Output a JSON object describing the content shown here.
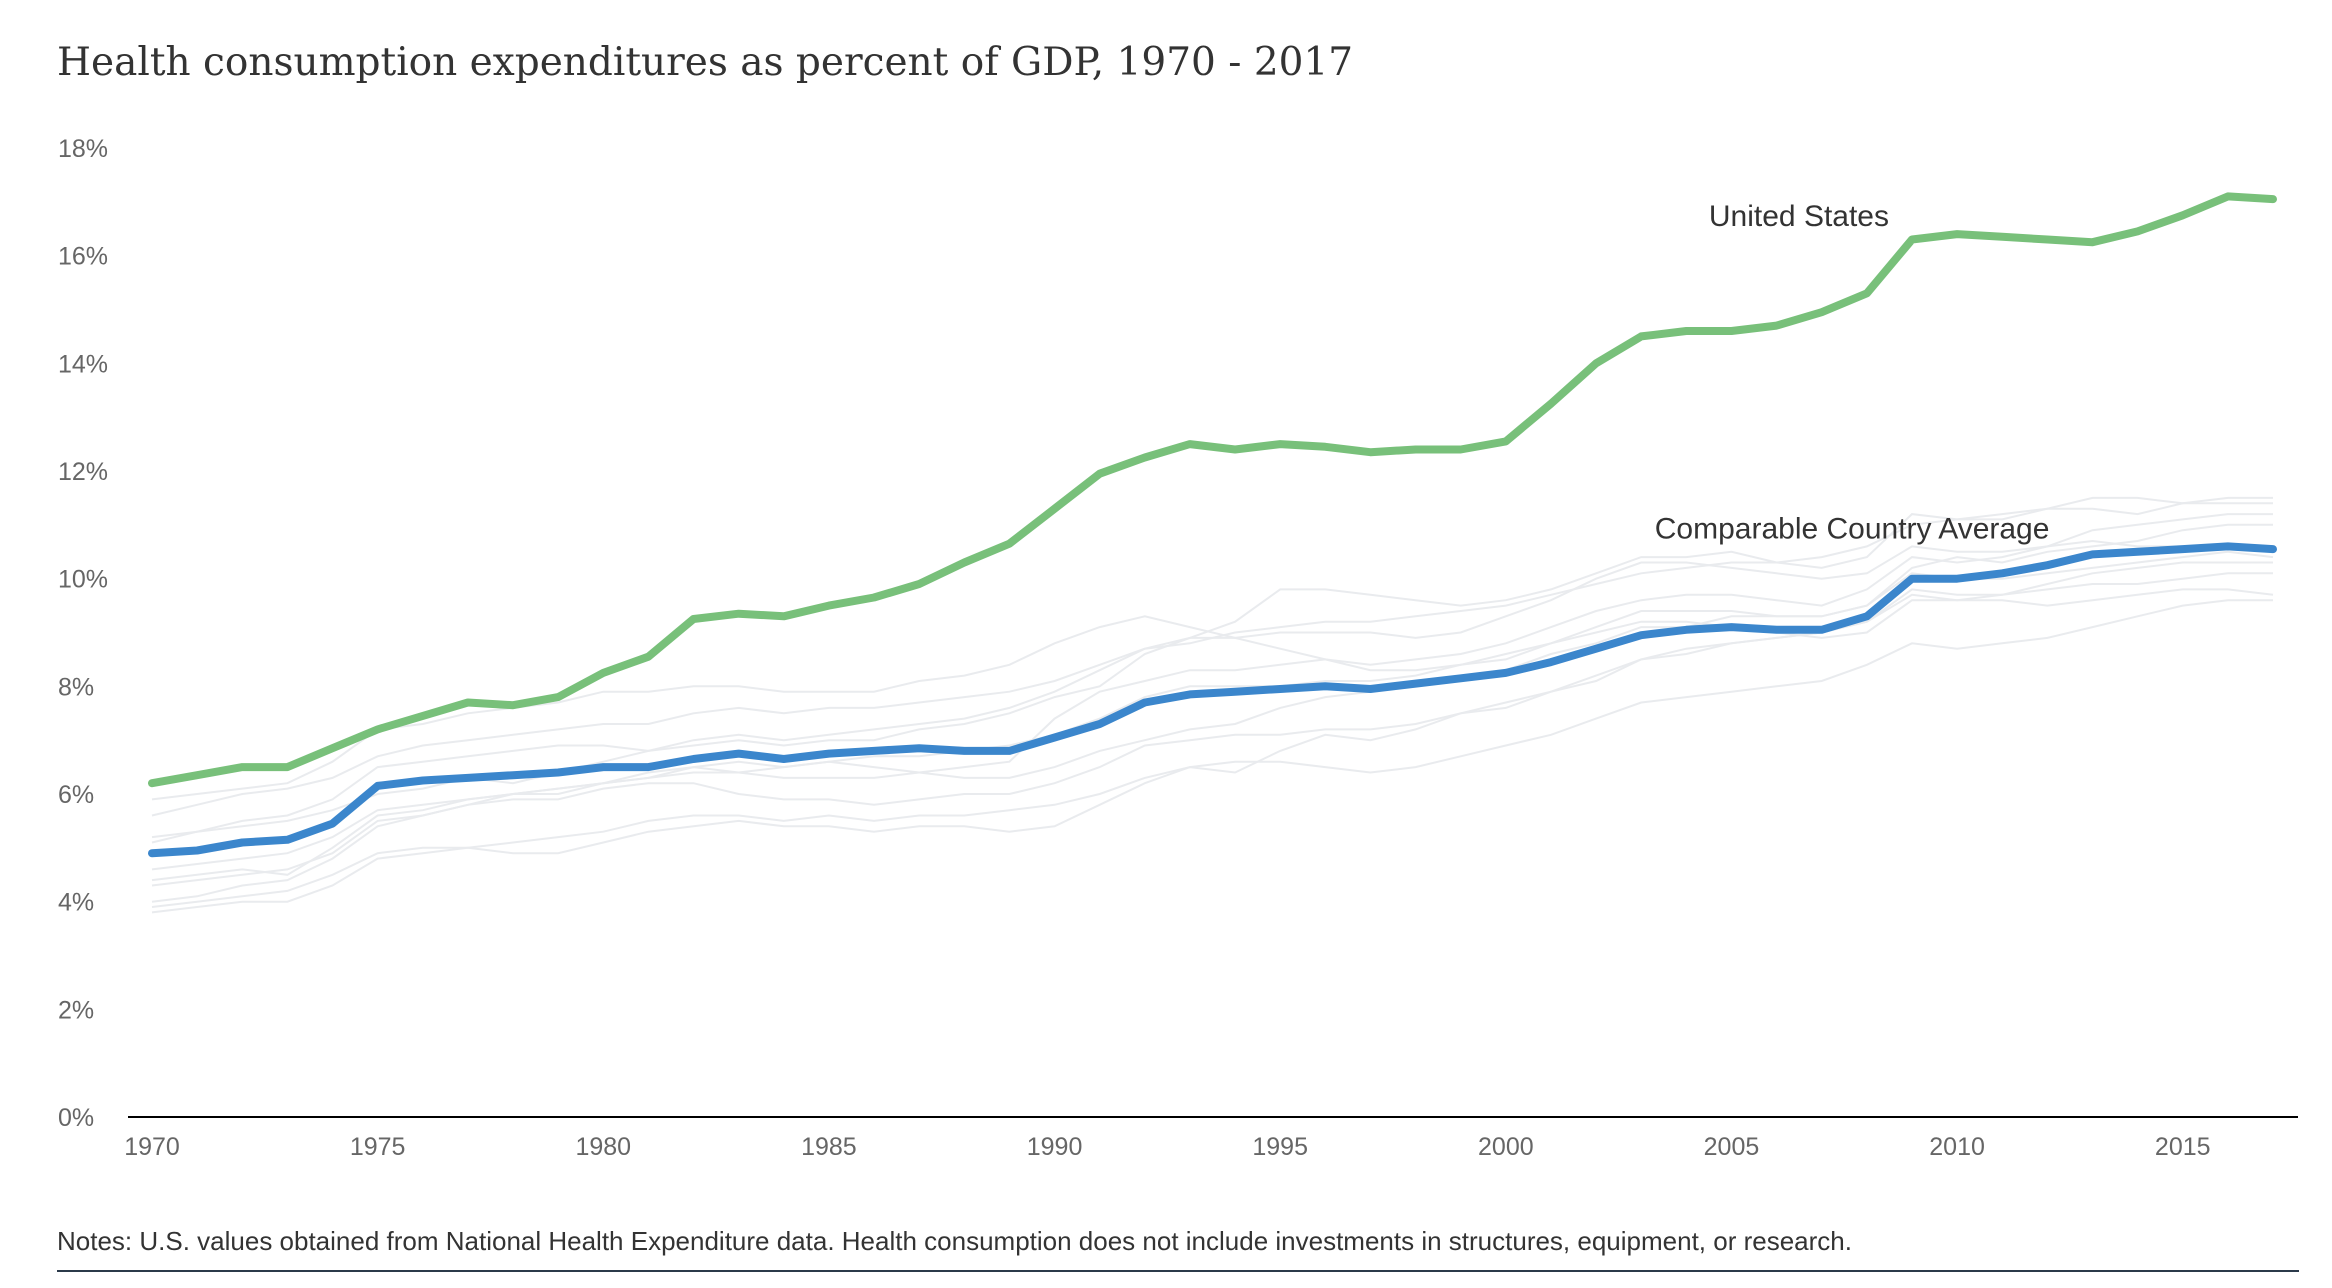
{
  "title": "Health consumption expenditures as percent of GDP, 1970 - 2017",
  "notes": "Notes: U.S. values obtained from National Health Expenditure data. Health consumption does not include investments in structures, equipment, or research.",
  "colors": {
    "us": "#78c07a",
    "avg": "#3b86cc",
    "bg_lines": "#e9ebee",
    "axis": "#000000",
    "tick_text": "#666666"
  },
  "chart_data": {
    "type": "line",
    "title": "Health consumption expenditures as percent of GDP, 1970 - 2017",
    "xlabel": "",
    "ylabel": "",
    "xlim": [
      1970,
      2017
    ],
    "ylim": [
      0,
      18
    ],
    "x_ticks": [
      1970,
      1975,
      1980,
      1985,
      1990,
      1995,
      2000,
      2005,
      2010,
      2015
    ],
    "y_ticks": [
      0,
      2,
      4,
      6,
      8,
      10,
      12,
      14,
      16,
      18
    ],
    "y_tick_labels": [
      "0%",
      "2%",
      "4%",
      "6%",
      "8%",
      "10%",
      "12%",
      "14%",
      "16%",
      "18%"
    ],
    "grid": false,
    "legend": "none (direct labels)",
    "x": [
      1970,
      1971,
      1972,
      1973,
      1974,
      1975,
      1976,
      1977,
      1978,
      1979,
      1980,
      1981,
      1982,
      1983,
      1984,
      1985,
      1986,
      1987,
      1988,
      1989,
      1990,
      1991,
      1992,
      1993,
      1994,
      1995,
      1996,
      1997,
      1998,
      1999,
      2000,
      2001,
      2002,
      2003,
      2004,
      2005,
      2006,
      2007,
      2008,
      2009,
      2010,
      2011,
      2012,
      2013,
      2014,
      2015,
      2016,
      2017
    ],
    "series": [
      {
        "name": "United States",
        "values": [
          6.2,
          6.35,
          6.5,
          6.5,
          6.85,
          7.2,
          7.45,
          7.7,
          7.65,
          7.8,
          8.25,
          8.55,
          9.25,
          9.35,
          9.3,
          9.5,
          9.65,
          9.9,
          10.3,
          10.65,
          11.3,
          11.95,
          12.25,
          12.5,
          12.4,
          12.5,
          12.45,
          12.35,
          12.4,
          12.4,
          12.55,
          13.25,
          14.0,
          14.5,
          14.6,
          14.6,
          14.7,
          14.95,
          15.3,
          16.3,
          16.4,
          16.35,
          16.3,
          16.25,
          16.45,
          16.75,
          17.1,
          17.05
        ]
      },
      {
        "name": "Comparable Country Average",
        "values": [
          4.9,
          4.95,
          5.1,
          5.15,
          5.45,
          6.15,
          6.25,
          6.3,
          6.35,
          6.4,
          6.5,
          6.5,
          6.65,
          6.75,
          6.65,
          6.75,
          6.8,
          6.85,
          6.8,
          6.8,
          7.05,
          7.3,
          7.7,
          7.85,
          7.9,
          7.95,
          8.0,
          7.95,
          8.05,
          8.15,
          8.25,
          8.45,
          8.7,
          8.95,
          9.05,
          9.1,
          9.05,
          9.05,
          9.3,
          10.0,
          10.0,
          10.1,
          10.25,
          10.45,
          10.5,
          10.55,
          10.6,
          10.55
        ]
      }
    ],
    "background_series": [
      [
        4.4,
        4.5,
        4.6,
        4.5,
        5.0,
        5.6,
        5.7,
        5.9,
        6.0,
        6.0,
        6.2,
        6.3,
        6.4,
        6.4,
        6.3,
        6.3,
        6.3,
        6.4,
        6.5,
        6.6,
        7.4,
        7.9,
        8.1,
        8.3,
        8.3,
        8.4,
        8.5,
        8.4,
        8.5,
        8.6,
        8.8,
        9.1,
        9.4,
        9.6,
        9.7,
        9.7,
        9.6,
        9.5,
        9.8,
        10.4,
        10.3,
        10.4,
        10.6,
        10.9,
        11.0,
        11.1,
        11.2,
        11.2
      ],
      [
        3.9,
        4.0,
        4.1,
        4.2,
        4.5,
        4.9,
        5.0,
        5.0,
        4.9,
        4.9,
        5.1,
        5.3,
        5.4,
        5.5,
        5.4,
        5.4,
        5.3,
        5.4,
        5.4,
        5.3,
        5.4,
        5.8,
        6.2,
        6.5,
        6.4,
        6.8,
        7.1,
        7.0,
        7.2,
        7.5,
        7.6,
        7.9,
        8.2,
        8.5,
        8.7,
        8.8,
        8.9,
        9.0,
        9.2,
        9.7,
        9.6,
        9.6,
        9.5,
        9.6,
        9.7,
        9.8,
        9.8,
        9.7
      ],
      [
        5.1,
        5.3,
        5.5,
        5.6,
        5.9,
        6.5,
        6.6,
        6.7,
        6.8,
        6.9,
        6.9,
        6.8,
        6.9,
        7.0,
        6.9,
        7.0,
        7.0,
        7.2,
        7.3,
        7.5,
        7.8,
        8.0,
        8.6,
        8.9,
        9.2,
        9.8,
        9.8,
        9.7,
        9.6,
        9.5,
        9.6,
        9.8,
        10.1,
        10.4,
        10.4,
        10.5,
        10.3,
        10.2,
        10.4,
        11.2,
        11.1,
        11.1,
        11.3,
        11.5,
        11.5,
        11.4,
        11.5,
        11.5
      ],
      [
        4.3,
        4.4,
        4.5,
        4.6,
        4.9,
        5.5,
        5.6,
        5.8,
        6.0,
        6.1,
        6.2,
        6.4,
        6.5,
        6.4,
        6.5,
        6.6,
        6.5,
        6.4,
        6.3,
        6.3,
        6.5,
        6.8,
        7.0,
        7.2,
        7.3,
        7.6,
        7.8,
        7.9,
        8.0,
        8.2,
        8.3,
        8.6,
        8.8,
        9.1,
        9.1,
        9.3,
        9.3,
        9.3,
        9.5,
        10.2,
        10.4,
        10.3,
        10.5,
        10.6,
        10.7,
        10.9,
        11.0,
        11.0
      ],
      [
        5.2,
        5.3,
        5.4,
        5.5,
        5.7,
        6.0,
        6.1,
        6.3,
        6.2,
        6.4,
        6.6,
        6.8,
        7.0,
        7.1,
        7.0,
        7.1,
        7.2,
        7.3,
        7.4,
        7.6,
        7.9,
        8.3,
        8.7,
        8.8,
        9.0,
        9.1,
        9.2,
        9.2,
        9.3,
        9.4,
        9.5,
        9.7,
        9.9,
        10.1,
        10.2,
        10.3,
        10.3,
        10.4,
        10.6,
        11.0,
        11.1,
        11.2,
        11.3,
        11.3,
        11.2,
        11.4,
        11.4,
        11.4
      ],
      [
        4.0,
        4.1,
        4.3,
        4.4,
        4.8,
        5.4,
        5.6,
        5.8,
        5.9,
        5.9,
        6.1,
        6.2,
        6.2,
        6.0,
        5.9,
        5.9,
        5.8,
        5.9,
        6.0,
        6.0,
        6.2,
        6.5,
        6.9,
        7.0,
        7.1,
        7.1,
        7.2,
        7.2,
        7.3,
        7.5,
        7.7,
        7.9,
        8.1,
        8.5,
        8.6,
        8.8,
        8.9,
        9.0,
        9.2,
        9.8,
        9.7,
        9.7,
        9.9,
        10.1,
        10.2,
        10.3,
        10.3,
        10.3
      ],
      [
        5.6,
        5.8,
        6.0,
        6.1,
        6.3,
        6.7,
        6.9,
        7.0,
        7.1,
        7.2,
        7.3,
        7.3,
        7.5,
        7.6,
        7.5,
        7.6,
        7.6,
        7.7,
        7.8,
        7.9,
        8.1,
        8.4,
        8.7,
        8.9,
        8.9,
        9.0,
        9.0,
        9.0,
        8.9,
        9.0,
        9.3,
        9.6,
        10.0,
        10.3,
        10.3,
        10.2,
        10.1,
        10.0,
        10.1,
        10.6,
        10.5,
        10.5,
        10.6,
        10.7,
        10.6,
        10.6,
        10.6,
        10.5
      ],
      [
        3.8,
        3.9,
        4.0,
        4.0,
        4.3,
        4.8,
        4.9,
        5.0,
        5.1,
        5.2,
        5.3,
        5.5,
        5.6,
        5.6,
        5.5,
        5.6,
        5.5,
        5.6,
        5.6,
        5.7,
        5.8,
        6.0,
        6.3,
        6.5,
        6.6,
        6.6,
        6.5,
        6.4,
        6.5,
        6.7,
        6.9,
        7.1,
        7.4,
        7.7,
        7.8,
        7.9,
        8.0,
        8.1,
        8.4,
        8.8,
        8.7,
        8.8,
        8.9,
        9.1,
        9.3,
        9.5,
        9.6,
        9.6
      ],
      [
        5.9,
        6.0,
        6.1,
        6.2,
        6.6,
        7.2,
        7.3,
        7.5,
        7.6,
        7.7,
        7.9,
        7.9,
        8.0,
        8.0,
        7.9,
        7.9,
        7.9,
        8.1,
        8.2,
        8.4,
        8.8,
        9.1,
        9.3,
        9.1,
        8.9,
        8.7,
        8.5,
        8.3,
        8.3,
        8.4,
        8.5,
        8.8,
        9.0,
        9.2,
        9.2,
        9.1,
        9.0,
        8.9,
        9.0,
        9.6,
        9.6,
        9.7,
        9.8,
        9.9,
        9.9,
        10.0,
        10.1,
        10.1
      ],
      [
        4.6,
        4.7,
        4.8,
        4.9,
        5.2,
        5.7,
        5.8,
        5.9,
        6.0,
        6.1,
        6.2,
        6.3,
        6.5,
        6.6,
        6.5,
        6.6,
        6.7,
        6.7,
        6.8,
        6.9,
        7.1,
        7.4,
        7.8,
        8.0,
        8.0,
        8.0,
        8.1,
        8.1,
        8.2,
        8.4,
        8.6,
        8.8,
        9.1,
        9.4,
        9.4,
        9.4,
        9.3,
        9.3,
        9.5,
        10.1,
        10.0,
        10.0,
        10.1,
        10.2,
        10.3,
        10.4,
        10.5,
        10.4
      ]
    ]
  }
}
